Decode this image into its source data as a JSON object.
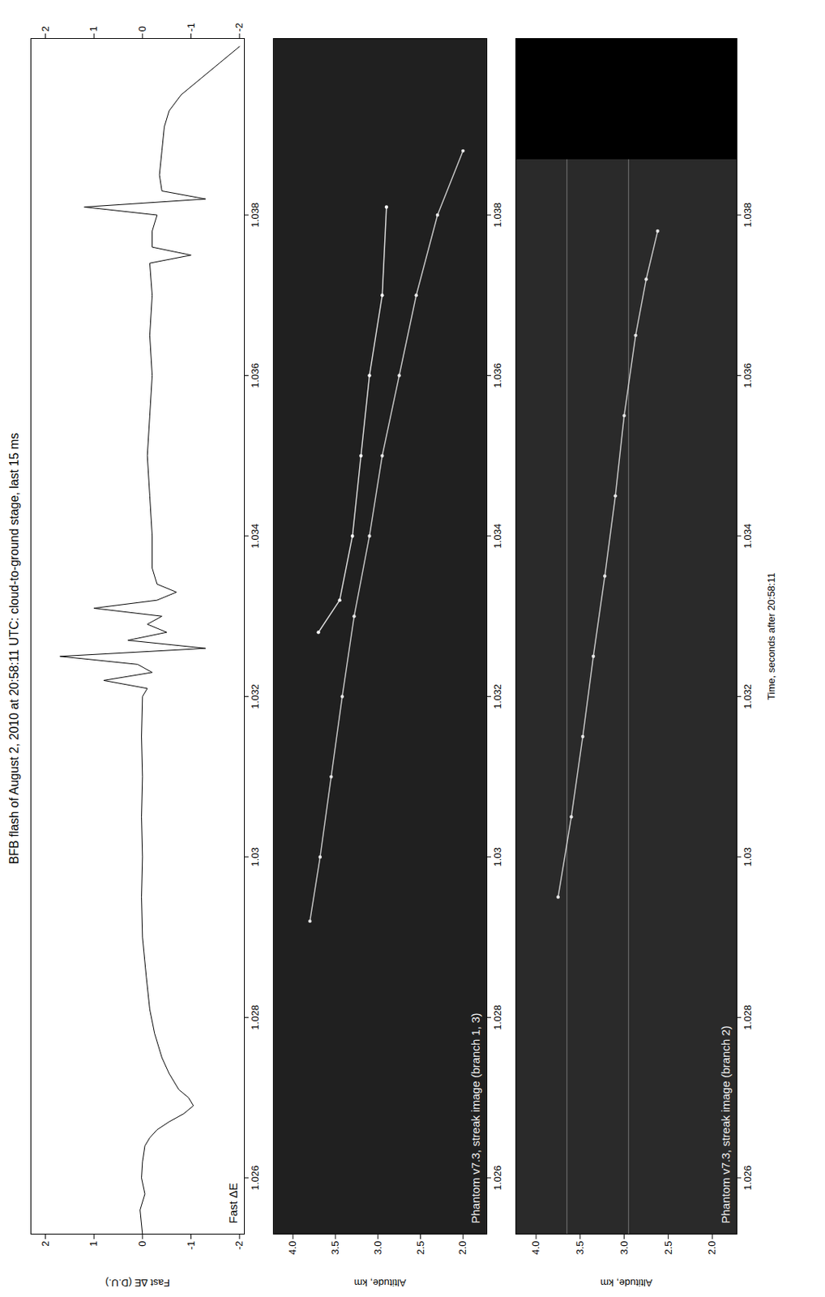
{
  "chart_data": [
    {
      "type": "line",
      "title": "BFB flash of August 2, 2010 at 20:58:11 UTC: cloud-to-ground stage, last 15 ms",
      "ylabel": "Fast ΔE (D.U.)",
      "annotation": "Fast ΔE",
      "color": "#000000",
      "x": [
        1.0253,
        1.0256,
        1.0258,
        1.026,
        1.0262,
        1.0264,
        1.0265,
        1.0266,
        1.0267,
        1.0268,
        1.0269,
        1.027,
        1.0271,
        1.0273,
        1.0275,
        1.0278,
        1.0281,
        1.0285,
        1.029,
        1.0295,
        1.03,
        1.0305,
        1.031,
        1.0315,
        1.032,
        1.0321,
        1.0322,
        1.0323,
        1.0324,
        1.0325,
        1.0326,
        1.0327,
        1.0328,
        1.0329,
        1.033,
        1.0331,
        1.0332,
        1.0333,
        1.0334,
        1.0336,
        1.034,
        1.0345,
        1.035,
        1.0355,
        1.036,
        1.0365,
        1.037,
        1.0374,
        1.0375,
        1.0376,
        1.0378,
        1.038,
        1.0381,
        1.0382,
        1.0383,
        1.0385,
        1.0388,
        1.0391,
        1.0393,
        1.0395,
        1.0397,
        1.0399,
        1.0401
      ],
      "values": [
        0.0,
        0.05,
        -0.05,
        0.02,
        0.0,
        -0.05,
        -0.15,
        -0.3,
        -0.55,
        -0.85,
        -1.05,
        -0.95,
        -0.75,
        -0.55,
        -0.4,
        -0.25,
        -0.15,
        -0.08,
        0.0,
        0.02,
        0.0,
        0.02,
        0.0,
        0.02,
        0.0,
        -0.1,
        0.8,
        -0.2,
        0.1,
        1.7,
        -1.3,
        0.3,
        -0.5,
        -0.1,
        -0.4,
        1.0,
        -0.3,
        -0.7,
        -0.3,
        -0.2,
        -0.2,
        -0.15,
        -0.1,
        -0.15,
        -0.2,
        -0.15,
        -0.2,
        -0.15,
        -1.0,
        -0.2,
        -0.2,
        -0.3,
        1.2,
        -1.3,
        -0.4,
        -0.35,
        -0.4,
        -0.45,
        -0.55,
        -0.8,
        -1.2,
        -1.6,
        -2.0
      ],
      "xlim": [
        1.0253,
        1.0402
      ],
      "xticks": [
        1.026,
        1.028,
        1.03,
        1.032,
        1.034,
        1.036,
        1.038
      ],
      "ylim": [
        -2.1,
        2.3
      ],
      "yticks": [
        2,
        1,
        0,
        -1,
        -2
      ]
    },
    {
      "type": "streak",
      "ylabel": "Altitude, km",
      "annotation": "Phantom v7.3, streak image (branch 1, 3)",
      "series": [
        {
          "color": "#e6e6e6",
          "x": [
            1.0292,
            1.03,
            1.031,
            1.032,
            1.033,
            1.034,
            1.035,
            1.036,
            1.037,
            1.038,
            1.0388
          ],
          "values": [
            3.8,
            3.68,
            3.55,
            3.42,
            3.28,
            3.1,
            2.95,
            2.75,
            2.55,
            2.3,
            2.0
          ]
        },
        {
          "color": "#ffffff",
          "x": [
            1.0328,
            1.0332,
            1.034,
            1.035,
            1.036,
            1.037,
            1.0381
          ],
          "values": [
            3.7,
            3.45,
            3.3,
            3.2,
            3.1,
            2.95,
            2.9
          ]
        }
      ],
      "xlim": [
        1.0253,
        1.0402
      ],
      "xticks": [
        1.026,
        1.028,
        1.03,
        1.032,
        1.034,
        1.036,
        1.038
      ],
      "ylim": [
        1.72,
        4.23
      ],
      "yticks": [
        {
          "value": 4.0,
          "label": "4.0"
        },
        3.5,
        {
          "value": 3.0,
          "label": "3.0"
        },
        2.5,
        {
          "value": 2.0,
          "label": "2.0"
        }
      ]
    },
    {
      "type": "streak",
      "ylabel": "Altitude, km",
      "xlabel": "Time, seconds after 20:58:11",
      "annotation": "Phantom v7.3, streak image (branch 2)",
      "series": [
        {
          "color": "#e6e6e6",
          "x": [
            1.0295,
            1.0305,
            1.0315,
            1.0325,
            1.0335,
            1.0345,
            1.0355,
            1.0365,
            1.0372,
            1.0378
          ],
          "values": [
            3.75,
            3.6,
            3.47,
            3.35,
            3.22,
            3.1,
            3.0,
            2.87,
            2.75,
            2.62
          ]
        }
      ],
      "bright_levels": [
        3.65,
        2.95
      ],
      "masked_x": [
        1.0387,
        1.0402
      ],
      "xlim": [
        1.0253,
        1.0402
      ],
      "xticks": [
        1.026,
        1.028,
        1.03,
        1.032,
        1.034,
        1.036,
        1.038
      ],
      "ylim": [
        1.72,
        4.23
      ],
      "yticks": [
        {
          "value": 4.0,
          "label": "4.0"
        },
        3.5,
        {
          "value": 3.0,
          "label": "3.0"
        },
        2.5,
        {
          "value": 2.0,
          "label": "2.0"
        }
      ]
    }
  ]
}
